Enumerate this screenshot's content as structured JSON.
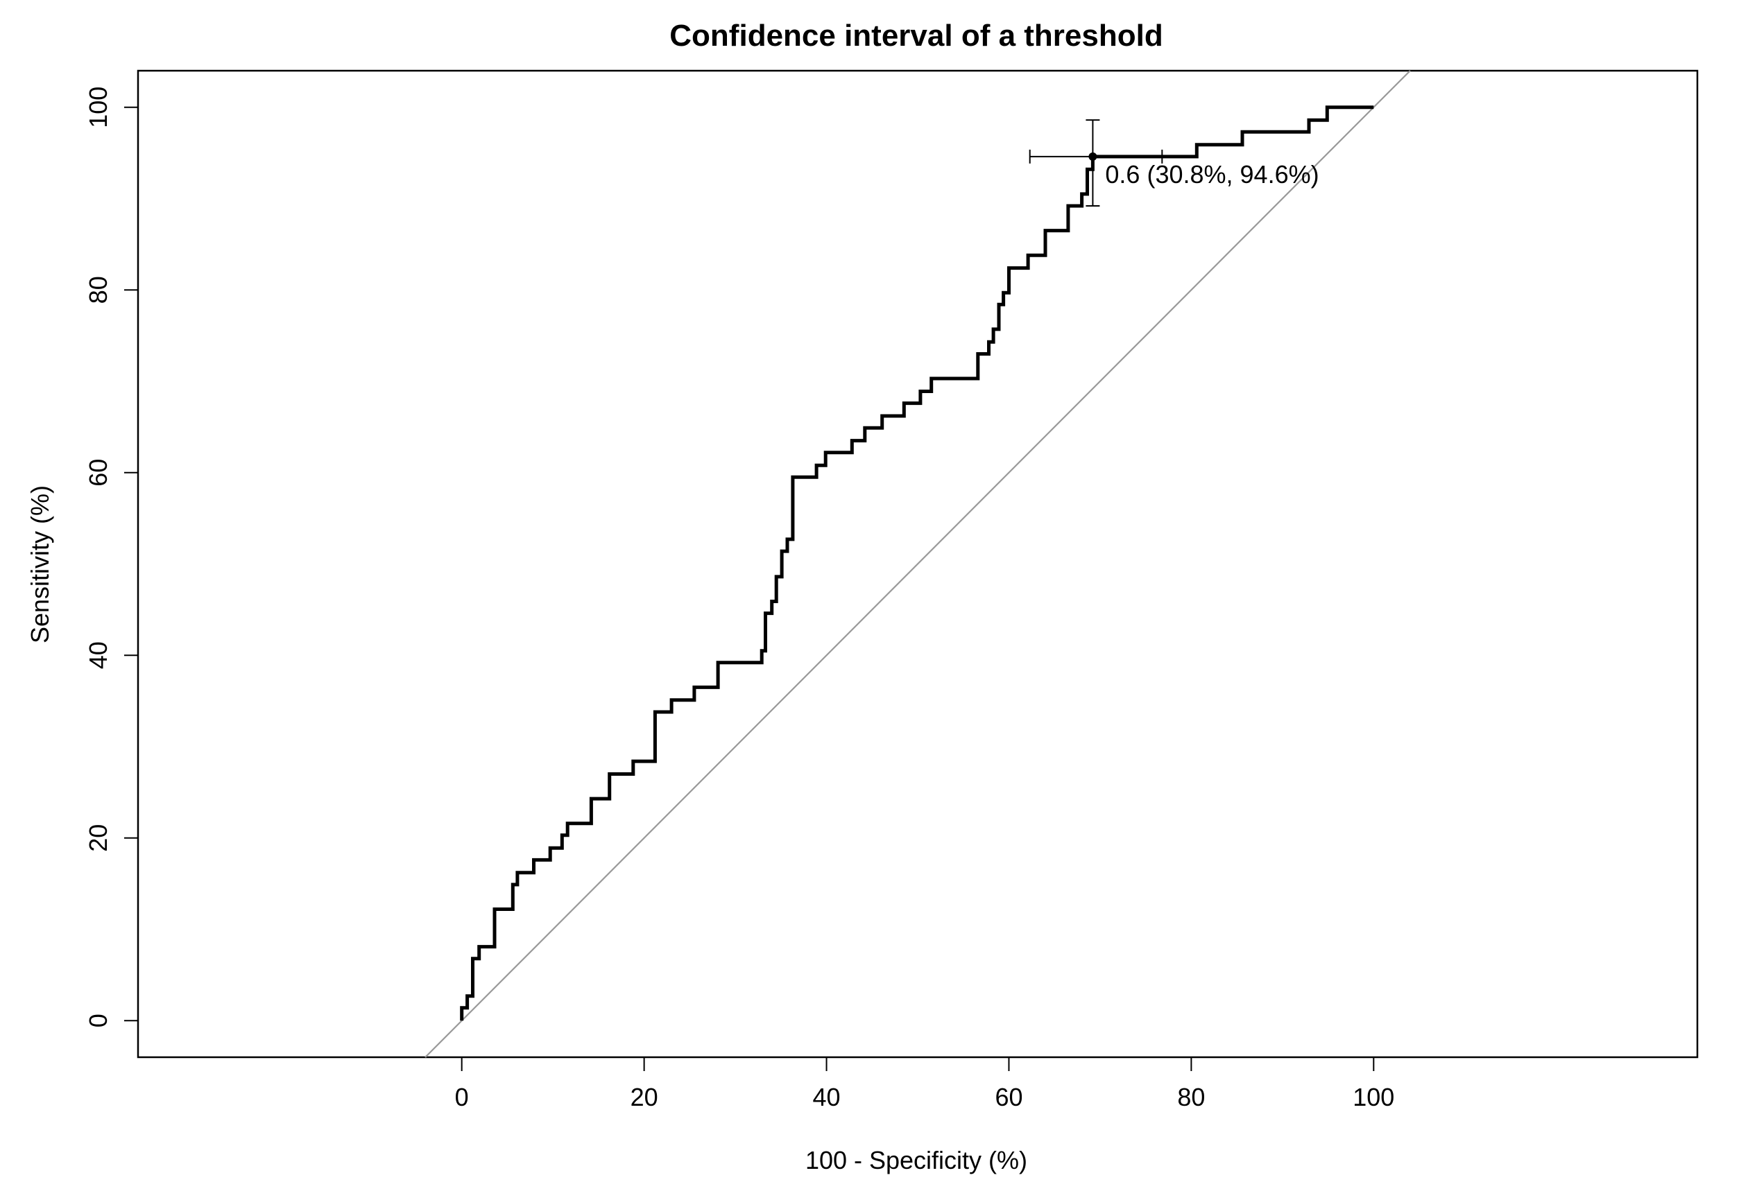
{
  "chart_data": {
    "type": "line",
    "title": "Confidence interval of a threshold",
    "xlabel": "100 - Specificity (%)",
    "ylabel": "Sensitivity (%)",
    "xlim": [
      -35.5,
      135.5
    ],
    "ylim": [
      -4,
      104
    ],
    "x_ticks": [
      0,
      20,
      40,
      60,
      80,
      100
    ],
    "y_ticks": [
      0,
      20,
      40,
      60,
      80,
      100
    ],
    "x_tick_labels": [
      "0",
      "20",
      "40",
      "60",
      "80",
      "100"
    ],
    "y_tick_labels": [
      "0",
      "20",
      "40",
      "60",
      "80",
      100
    ],
    "grid": false,
    "legend": "none",
    "series": [
      {
        "style": "step",
        "color": "#000000",
        "points": [
          [
            0,
            0
          ],
          [
            0,
            1.4
          ],
          [
            0.6,
            1.4
          ],
          [
            0.6,
            2.7
          ],
          [
            1.2,
            2.7
          ],
          [
            1.2,
            6.8
          ],
          [
            1.9,
            6.8
          ],
          [
            1.9,
            8.1
          ],
          [
            3.6,
            8.1
          ],
          [
            3.6,
            12.2
          ],
          [
            5.6,
            12.2
          ],
          [
            5.6,
            14.9
          ],
          [
            6.1,
            14.9
          ],
          [
            6.1,
            16.2
          ],
          [
            7.9,
            16.2
          ],
          [
            7.9,
            17.6
          ],
          [
            9.7,
            17.6
          ],
          [
            9.7,
            18.9
          ],
          [
            11.0,
            18.9
          ],
          [
            11.0,
            20.3
          ],
          [
            11.6,
            20.3
          ],
          [
            11.6,
            21.6
          ],
          [
            14.2,
            21.6
          ],
          [
            14.2,
            24.3
          ],
          [
            16.2,
            24.3
          ],
          [
            16.2,
            27.0
          ],
          [
            18.8,
            27.0
          ],
          [
            18.8,
            28.4
          ],
          [
            21.2,
            28.4
          ],
          [
            21.2,
            33.8
          ],
          [
            23.0,
            33.8
          ],
          [
            23.0,
            35.1
          ],
          [
            25.5,
            35.1
          ],
          [
            25.5,
            36.5
          ],
          [
            28.1,
            36.5
          ],
          [
            28.1,
            39.2
          ],
          [
            32.9,
            39.2
          ],
          [
            32.9,
            40.5
          ],
          [
            33.3,
            40.5
          ],
          [
            33.3,
            44.6
          ],
          [
            34.0,
            44.6
          ],
          [
            34.0,
            45.9
          ],
          [
            34.5,
            45.9
          ],
          [
            34.5,
            48.6
          ],
          [
            35.1,
            48.6
          ],
          [
            35.1,
            51.4
          ],
          [
            35.7,
            51.4
          ],
          [
            35.7,
            52.7
          ],
          [
            36.3,
            52.7
          ],
          [
            36.3,
            59.5
          ],
          [
            38.9,
            59.5
          ],
          [
            38.9,
            60.8
          ],
          [
            39.9,
            60.8
          ],
          [
            39.9,
            62.2
          ],
          [
            42.8,
            62.2
          ],
          [
            42.8,
            63.5
          ],
          [
            44.2,
            63.5
          ],
          [
            44.2,
            64.9
          ],
          [
            46.1,
            64.9
          ],
          [
            46.1,
            66.2
          ],
          [
            48.5,
            66.2
          ],
          [
            48.5,
            67.6
          ],
          [
            50.3,
            67.6
          ],
          [
            50.3,
            68.9
          ],
          [
            51.5,
            68.9
          ],
          [
            51.5,
            70.3
          ],
          [
            56.6,
            70.3
          ],
          [
            56.6,
            73.0
          ],
          [
            57.8,
            73.0
          ],
          [
            57.8,
            74.3
          ],
          [
            58.3,
            74.3
          ],
          [
            58.3,
            75.7
          ],
          [
            58.9,
            75.7
          ],
          [
            58.9,
            78.4
          ],
          [
            59.4,
            78.4
          ],
          [
            59.4,
            79.7
          ],
          [
            60.0,
            79.7
          ],
          [
            60.0,
            82.4
          ],
          [
            62.1,
            82.4
          ],
          [
            62.1,
            83.8
          ],
          [
            64.0,
            83.8
          ],
          [
            64.0,
            86.5
          ],
          [
            66.5,
            86.5
          ],
          [
            66.5,
            89.2
          ],
          [
            68.0,
            89.2
          ],
          [
            68.0,
            90.5
          ],
          [
            68.6,
            90.5
          ],
          [
            68.6,
            93.2
          ],
          [
            69.2,
            93.2
          ],
          [
            69.2,
            94.6
          ],
          [
            80.6,
            94.6
          ],
          [
            80.6,
            95.9
          ],
          [
            85.6,
            95.9
          ],
          [
            85.6,
            97.3
          ],
          [
            92.9,
            97.3
          ],
          [
            92.9,
            98.6
          ],
          [
            94.9,
            98.6
          ],
          [
            94.9,
            100
          ],
          [
            100,
            100
          ]
        ]
      }
    ],
    "reference_line": {
      "color": "#999999",
      "from": [
        -4,
        -4
      ],
      "to": [
        104,
        104
      ]
    },
    "threshold": {
      "x": 69.2,
      "y": 94.6,
      "x_ci": [
        62.3,
        76.8
      ],
      "y_ci": [
        89.2,
        98.6
      ],
      "label": "0.6 (30.8%, 94.6%)"
    }
  }
}
